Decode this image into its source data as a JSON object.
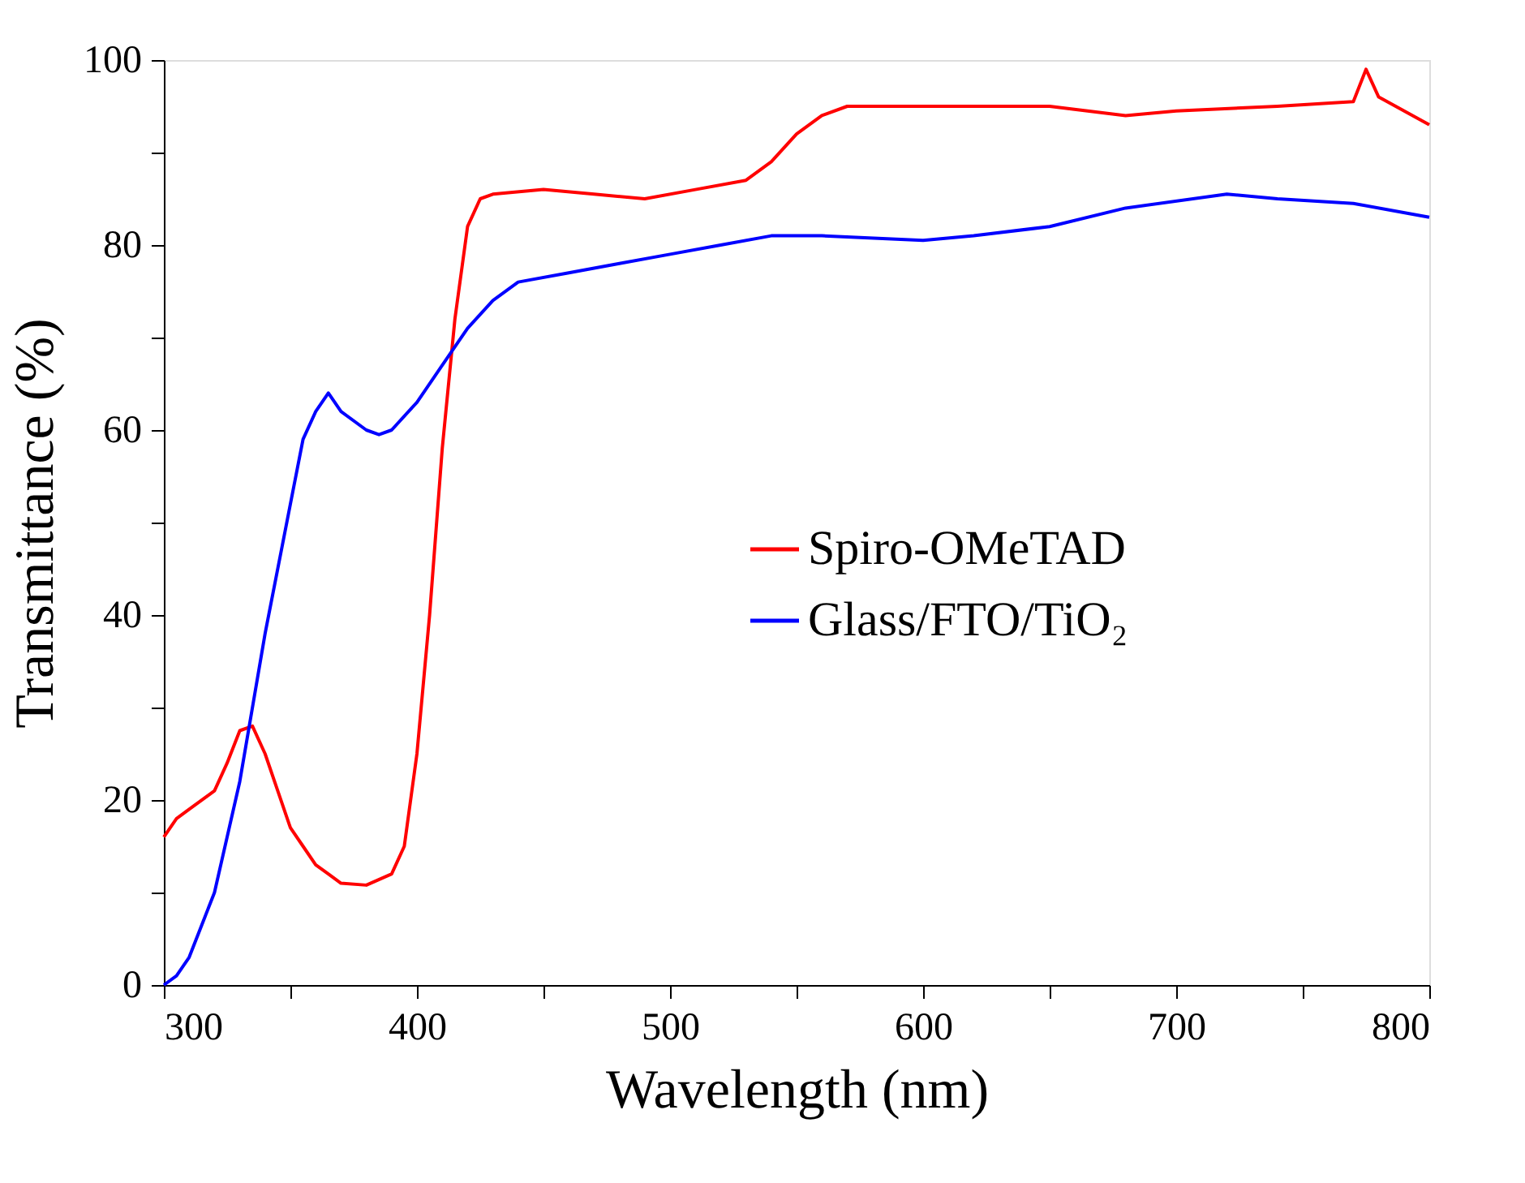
{
  "chart_data": {
    "type": "line",
    "xlabel": "Wavelength (nm)",
    "ylabel": "Transmittance (%)",
    "xlim": [
      300,
      800
    ],
    "ylim": [
      0,
      100
    ],
    "xticks": [
      300,
      {
        "value": 350,
        "label": null
      },
      400,
      {
        "value": 450,
        "label": null
      },
      500,
      {
        "value": 550,
        "label": null
      },
      600,
      {
        "value": 650,
        "label": null
      },
      700,
      {
        "value": 750,
        "label": null
      },
      800
    ],
    "yticks": [
      0,
      {
        "value": 10,
        "label": null
      },
      20,
      {
        "value": 30,
        "label": null
      },
      40,
      {
        "value": 50,
        "label": null
      },
      60,
      {
        "value": 70,
        "label": null
      },
      80,
      {
        "value": 90,
        "label": null
      },
      100
    ],
    "grid": false,
    "legend": "right",
    "line_style": "solid",
    "series": [
      {
        "name": "Spiro-OMeTAD",
        "color": "#ff0000",
        "x": [
          300,
          305,
          310,
          320,
          325,
          330,
          335,
          340,
          345,
          350,
          355,
          360,
          365,
          370,
          380,
          390,
          395,
          400,
          405,
          410,
          415,
          420,
          425,
          430,
          450,
          470,
          490,
          510,
          530,
          540,
          550,
          560,
          570,
          600,
          650,
          680,
          700,
          740,
          770,
          775,
          780,
          800
        ],
        "values": [
          16,
          18,
          19,
          21,
          24,
          27.5,
          28,
          25,
          21,
          17,
          15,
          13,
          12,
          11,
          10.8,
          12,
          15,
          25,
          40,
          58,
          72,
          82,
          85,
          85.5,
          86,
          85.5,
          85,
          86,
          87,
          89,
          92,
          94,
          95,
          95,
          95,
          94,
          94.5,
          95,
          95.5,
          99,
          96,
          93
        ]
      },
      {
        "name": "Glass/FTO/TiO₂",
        "color": "#0000ff",
        "x": [
          300,
          305,
          310,
          320,
          330,
          340,
          350,
          355,
          360,
          365,
          370,
          380,
          385,
          390,
          400,
          410,
          420,
          430,
          440,
          460,
          480,
          500,
          520,
          540,
          560,
          600,
          620,
          650,
          680,
          720,
          740,
          770,
          800
        ],
        "values": [
          0,
          1,
          3,
          10,
          22,
          38,
          52,
          59,
          62,
          64,
          62,
          60,
          59.5,
          60,
          63,
          67,
          71,
          74,
          76,
          77,
          78,
          79,
          80,
          81,
          81,
          80.5,
          81,
          82,
          84,
          85.5,
          85,
          84.5,
          83
        ]
      }
    ]
  }
}
